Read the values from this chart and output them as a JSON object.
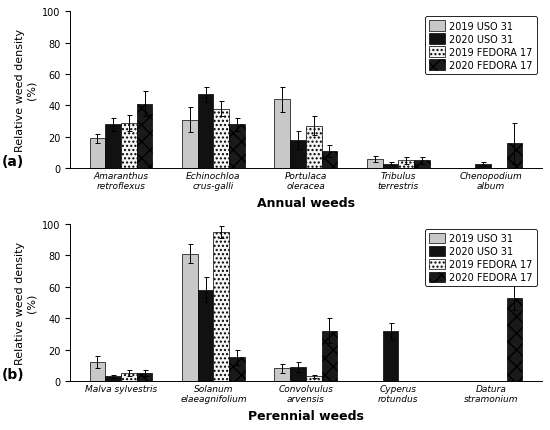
{
  "panel_a": {
    "xlabel": "Annual weeds",
    "label": "(a)",
    "species": [
      "Amaranthus\nretroflexus",
      "Echinochloa\ncrus-galli",
      "Portulaca\noleracea",
      "Tribulus\nterrestris",
      "Chenopodium\nalbum"
    ],
    "values": [
      [
        19,
        28,
        29,
        41
      ],
      [
        31,
        47,
        38,
        28
      ],
      [
        44,
        18,
        27,
        11
      ],
      [
        6,
        3,
        5,
        5
      ],
      [
        0,
        3,
        0,
        16
      ]
    ],
    "errors": [
      [
        3,
        4,
        5,
        8
      ],
      [
        8,
        5,
        5,
        4
      ],
      [
        8,
        6,
        6,
        4
      ],
      [
        2,
        1,
        2,
        2
      ],
      [
        0,
        1,
        0,
        13
      ]
    ]
  },
  "panel_b": {
    "xlabel": "Perennial weeds",
    "label": "(b)",
    "species": [
      "Malva sylvestris",
      "Solanum\nelaeagnifolium",
      "Convolvulus\narvensis",
      "Cyperus\nrotundus",
      "Datura\nstramonium"
    ],
    "values": [
      [
        12,
        3,
        5,
        5
      ],
      [
        81,
        58,
        95,
        15
      ],
      [
        8,
        9,
        3,
        32
      ],
      [
        0,
        32,
        0,
        0
      ],
      [
        0,
        0,
        0,
        53
      ]
    ],
    "errors": [
      [
        4,
        1,
        2,
        2
      ],
      [
        6,
        8,
        4,
        5
      ],
      [
        3,
        3,
        1,
        8
      ],
      [
        0,
        5,
        0,
        0
      ],
      [
        0,
        0,
        0,
        8
      ]
    ]
  },
  "legend_labels": [
    "2019 USO 31",
    "2020 USO 31",
    "2019 FEDORA 17",
    "2020 FEDORA 17"
  ],
  "bar_colors": [
    "#c8c8c8",
    "#111111",
    "#ffffff",
    "#ffffff"
  ],
  "bar_hatches": [
    "",
    "",
    "......",
    "////"
  ],
  "bar_width": 0.17,
  "ylim": [
    0,
    100
  ],
  "yticks": [
    0,
    20,
    40,
    60,
    80,
    100
  ],
  "ylabel": "Relative weed density\n(%)",
  "legend_fontsize": 7,
  "tick_fontsize": 7,
  "xlabel_fontsize": 9,
  "ylabel_fontsize": 8
}
